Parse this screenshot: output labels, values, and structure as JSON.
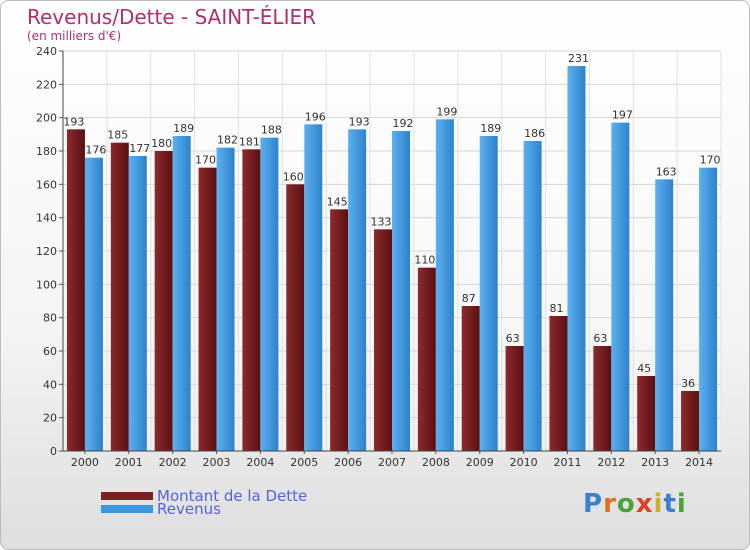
{
  "title": "Revenus/Dette - SAINT-ÉLIER",
  "subtitle": "(en milliers d'€)",
  "logo": {
    "letters": [
      "P",
      "r",
      "o",
      "x",
      "i",
      "t",
      "i"
    ],
    "colors": [
      "#3a7fd0",
      "#e07020",
      "#4aa33a",
      "#e04020",
      "#d0b020",
      "#3a7fd0",
      "#4aa33a"
    ]
  },
  "legend": [
    {
      "label": "Montant de la Dette",
      "color": "#7a1f22"
    },
    {
      "label": "Revenus",
      "color": "#3b97e0"
    }
  ],
  "chart_data": {
    "type": "bar",
    "categories": [
      "2000",
      "2001",
      "2002",
      "2003",
      "2004",
      "2005",
      "2006",
      "2007",
      "2008",
      "2009",
      "2010",
      "2011",
      "2012",
      "2013",
      "2014"
    ],
    "series": [
      {
        "name": "Montant de la Dette",
        "color": "#7a1f22",
        "values": [
          193,
          185,
          180,
          170,
          181,
          160,
          145,
          133,
          110,
          87,
          63,
          81,
          63,
          45,
          36
        ]
      },
      {
        "name": "Revenus",
        "color": "#3b97e0",
        "values": [
          176,
          177,
          189,
          182,
          188,
          196,
          193,
          192,
          199,
          189,
          186,
          231,
          197,
          163,
          170
        ]
      }
    ],
    "ylim": [
      0,
      240
    ],
    "yticks": [
      0,
      20,
      40,
      60,
      80,
      100,
      120,
      140,
      160,
      180,
      200,
      220,
      240
    ],
    "grid": true,
    "legend_position": "bottom-left"
  }
}
